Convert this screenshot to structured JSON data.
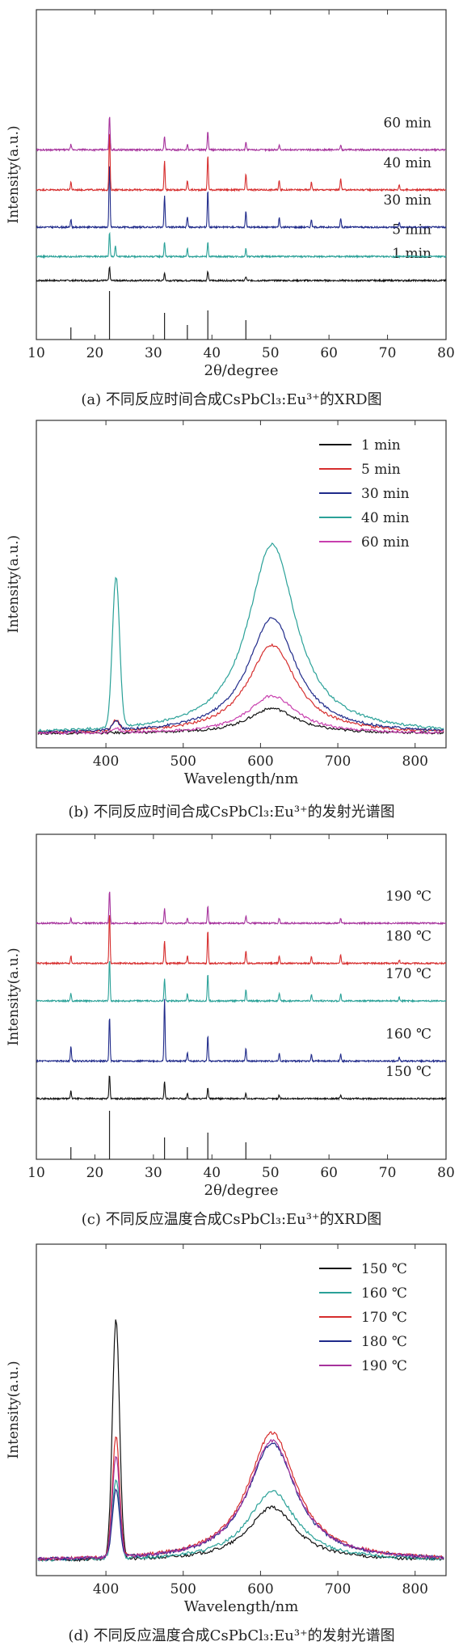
{
  "chart_data": [
    {
      "id": "a",
      "type": "line",
      "kind": "xrd",
      "caption": "(a) 不同反应时间合成CsPbCl₃:Eu³⁺的XRD图",
      "xlabel": "2θ/degree",
      "ylabel": "Intensity(a.u.)",
      "xlim": [
        10,
        80
      ],
      "xticks": [
        "10",
        "20",
        "30",
        "40",
        "50",
        "60",
        "70",
        "80"
      ],
      "grid": false,
      "reference_peaks": [
        15.9,
        22.5,
        31.9,
        35.8,
        39.3,
        45.8
      ],
      "reference_heights": [
        0.25,
        1.0,
        0.55,
        0.3,
        0.6,
        0.4
      ],
      "series": [
        {
          "name": "1 min",
          "label": "1 min",
          "color": "#111111",
          "offset": 0.0,
          "peaks": [
            [
              22.5,
              0.5
            ],
            [
              31.9,
              0.3
            ],
            [
              39.3,
              0.35
            ],
            [
              45.8,
              0.15
            ]
          ]
        },
        {
          "name": "5 min",
          "label": "5 min",
          "color": "#2aa198",
          "offset": 0.9,
          "peaks": [
            [
              22.5,
              0.9
            ],
            [
              23.5,
              0.4
            ],
            [
              31.9,
              0.55
            ],
            [
              35.8,
              0.3
            ],
            [
              39.3,
              0.55
            ],
            [
              45.8,
              0.3
            ]
          ]
        },
        {
          "name": "30 min",
          "label": "30 min",
          "color": "#1f2a8a",
          "offset": 2.0,
          "peaks": [
            [
              15.9,
              0.3
            ],
            [
              22.5,
              2.4
            ],
            [
              31.9,
              1.2
            ],
            [
              35.8,
              0.4
            ],
            [
              39.3,
              1.4
            ],
            [
              45.8,
              0.6
            ],
            [
              51.5,
              0.35
            ],
            [
              57.0,
              0.3
            ],
            [
              62.0,
              0.35
            ],
            [
              72.0,
              0.2
            ]
          ]
        },
        {
          "name": "40 min",
          "label": "40 min",
          "color": "#d62d2d",
          "offset": 3.4,
          "peaks": [
            [
              15.9,
              0.3
            ],
            [
              22.5,
              2.2
            ],
            [
              31.9,
              1.1
            ],
            [
              35.8,
              0.35
            ],
            [
              39.3,
              1.3
            ],
            [
              45.8,
              0.6
            ],
            [
              51.5,
              0.35
            ],
            [
              57.0,
              0.3
            ],
            [
              62.0,
              0.45
            ],
            [
              72.0,
              0.2
            ]
          ]
        },
        {
          "name": "60 min",
          "label": "60 min",
          "color": "#a6329c",
          "offset": 4.9,
          "peaks": [
            [
              15.9,
              0.2
            ],
            [
              22.5,
              1.3
            ],
            [
              31.9,
              0.5
            ],
            [
              35.8,
              0.2
            ],
            [
              39.3,
              0.7
            ],
            [
              45.8,
              0.3
            ],
            [
              51.5,
              0.2
            ],
            [
              62.0,
              0.2
            ]
          ]
        }
      ]
    },
    {
      "id": "b",
      "type": "line",
      "kind": "pl",
      "caption": "(b) 不同反应时间合成CsPbCl₃:Eu³⁺的发射光谱图",
      "xlabel": "Wavelength/nm",
      "ylabel": "Intensity(a.u.)",
      "xlim": [
        310,
        840
      ],
      "xticks": [
        "400",
        "500",
        "600",
        "700",
        "800"
      ],
      "grid": false,
      "legend": "top-right",
      "series": [
        {
          "name": "1 min",
          "color": "#111111",
          "peak413": 0.0,
          "peak615": 0.12
        },
        {
          "name": "5 min",
          "color": "#d62d2d",
          "peak413": 0.05,
          "peak615": 0.42
        },
        {
          "name": "30 min",
          "color": "#1f2a8a",
          "peak413": 0.04,
          "peak615": 0.55
        },
        {
          "name": "40 min",
          "color": "#2aa198",
          "peak413": 0.72,
          "peak615": 0.9
        },
        {
          "name": "60 min",
          "color": "#c83fae",
          "peak413": 0.02,
          "peak615": 0.18
        }
      ]
    },
    {
      "id": "c",
      "type": "line",
      "kind": "xrd",
      "caption": "(c) 不同反应温度合成CsPbCl₃:Eu³⁺的XRD图",
      "xlabel": "2θ/degree",
      "ylabel": "Intensity(a.u.)",
      "xlim": [
        10,
        80
      ],
      "xticks": [
        "10",
        "20",
        "30",
        "40",
        "50",
        "60",
        "70",
        "80"
      ],
      "grid": false,
      "reference_peaks": [
        15.9,
        22.5,
        31.9,
        35.8,
        39.3,
        45.8
      ],
      "reference_heights": [
        0.25,
        1.0,
        0.45,
        0.25,
        0.55,
        0.35
      ],
      "series": [
        {
          "name": "150 ℃",
          "label": "150 ℃",
          "color": "#111111",
          "offset": 0.0,
          "peaks": [
            [
              15.9,
              0.3
            ],
            [
              22.5,
              0.95
            ],
            [
              31.9,
              0.7
            ],
            [
              35.8,
              0.2
            ],
            [
              39.3,
              0.45
            ],
            [
              45.8,
              0.2
            ],
            [
              51.5,
              0.15
            ],
            [
              62.0,
              0.15
            ]
          ]
        },
        {
          "name": "160 ℃",
          "label": "160 ℃",
          "color": "#1f2a8a",
          "offset": 1.5,
          "peaks": [
            [
              15.9,
              0.6
            ],
            [
              22.5,
              1.8
            ],
            [
              31.9,
              2.5
            ],
            [
              35.8,
              0.35
            ],
            [
              39.3,
              1.0
            ],
            [
              45.8,
              0.5
            ],
            [
              51.5,
              0.3
            ],
            [
              57.0,
              0.25
            ],
            [
              62.0,
              0.3
            ],
            [
              72.0,
              0.15
            ]
          ]
        },
        {
          "name": "170 ℃",
          "label": "170 ℃",
          "color": "#2aa198",
          "offset": 3.9,
          "peaks": [
            [
              15.9,
              0.3
            ],
            [
              22.5,
              1.7
            ],
            [
              31.9,
              0.9
            ],
            [
              35.8,
              0.3
            ],
            [
              39.3,
              1.1
            ],
            [
              45.8,
              0.45
            ],
            [
              51.5,
              0.3
            ],
            [
              57.0,
              0.25
            ],
            [
              62.0,
              0.3
            ],
            [
              72.0,
              0.15
            ]
          ]
        },
        {
          "name": "180 ℃",
          "label": "180 ℃",
          "color": "#d62d2d",
          "offset": 5.4,
          "peaks": [
            [
              15.9,
              0.3
            ],
            [
              22.5,
              2.0
            ],
            [
              31.9,
              0.9
            ],
            [
              35.8,
              0.3
            ],
            [
              39.3,
              1.3
            ],
            [
              45.8,
              0.5
            ],
            [
              51.5,
              0.3
            ],
            [
              57.0,
              0.25
            ],
            [
              62.0,
              0.35
            ],
            [
              72.0,
              0.15
            ]
          ]
        },
        {
          "name": "190 ℃",
          "label": "190 ℃",
          "color": "#a6329c",
          "offset": 7.0,
          "peaks": [
            [
              15.9,
              0.2
            ],
            [
              22.5,
              1.3
            ],
            [
              31.9,
              0.6
            ],
            [
              35.8,
              0.2
            ],
            [
              39.3,
              0.7
            ],
            [
              45.8,
              0.3
            ],
            [
              51.5,
              0.2
            ],
            [
              62.0,
              0.2
            ]
          ]
        }
      ]
    },
    {
      "id": "d",
      "type": "line",
      "kind": "pl",
      "caption": "(d) 不同反应温度合成CsPbCl₃:Eu³⁺的发射光谱图",
      "xlabel": "Wavelength/nm",
      "ylabel": "Intensity(a.u.)",
      "xlim": [
        310,
        840
      ],
      "xticks": [
        "400",
        "500",
        "600",
        "700",
        "800"
      ],
      "grid": false,
      "legend": "top-right",
      "series": [
        {
          "name": "150 ℃",
          "color": "#111111",
          "peak413": 0.9,
          "peak615": 0.2
        },
        {
          "name": "160 ℃",
          "color": "#2aa198",
          "peak413": 0.3,
          "peak615": 0.26
        },
        {
          "name": "170 ℃",
          "color": "#d62d2d",
          "peak413": 0.45,
          "peak615": 0.48
        },
        {
          "name": "180 ℃",
          "color": "#1f2a8a",
          "peak413": 0.25,
          "peak615": 0.44
        },
        {
          "name": "190 ℃",
          "color": "#a6329c",
          "peak413": 0.38,
          "peak615": 0.45
        }
      ]
    }
  ]
}
